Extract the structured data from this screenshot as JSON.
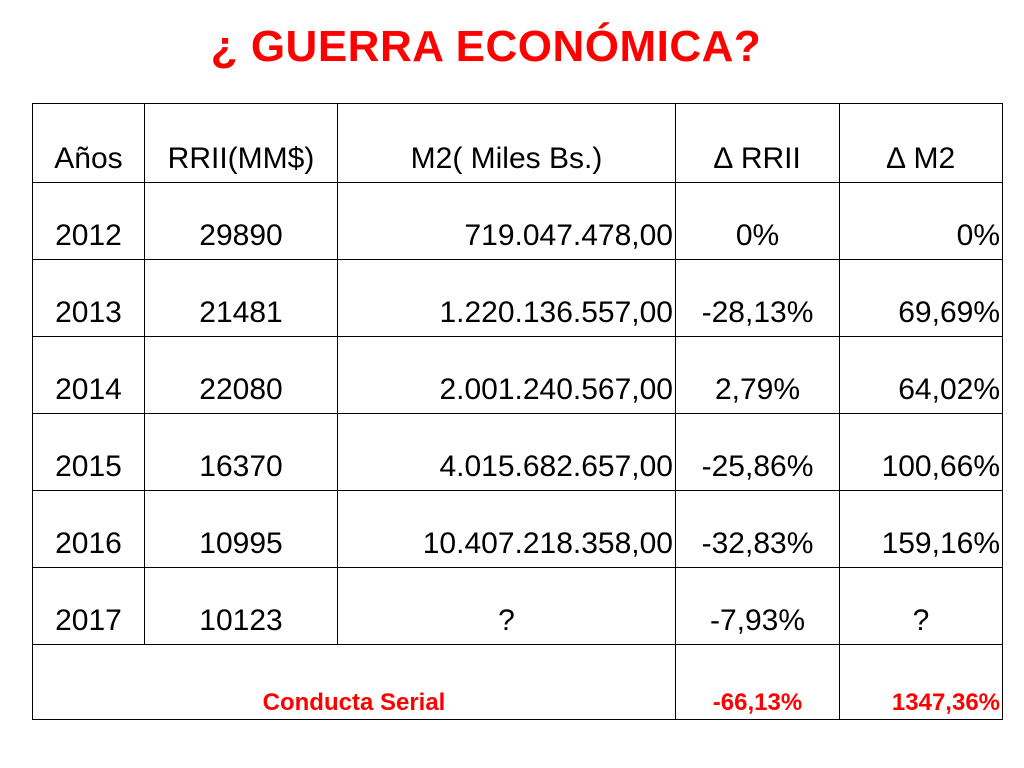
{
  "title": "¿ GUERRA ECONÓMICA?",
  "table": {
    "headers": [
      "Años",
      "RRII(MM$)",
      "M2( Miles Bs.)",
      "∆ RRII",
      "∆ M2"
    ],
    "rows": [
      [
        "2012",
        "29890",
        "719.047.478,00",
        "0%",
        "0%"
      ],
      [
        "2013",
        "21481",
        "1.220.136.557,00",
        "-28,13%",
        "69,69%"
      ],
      [
        "2014",
        "22080",
        "2.001.240.567,00",
        "2,79%",
        "64,02%"
      ],
      [
        "2015",
        "16370",
        "4.015.682.657,00",
        "-25,86%",
        "100,66%"
      ],
      [
        "2016",
        "10995",
        "10.407.218.358,00",
        "-32,83%",
        "159,16%"
      ],
      [
        "2017",
        "10123",
        "?",
        "-7,93%",
        "?"
      ]
    ],
    "summary": {
      "label": "Conducta Serial",
      "delta_rrii": "-66,13%",
      "delta_m2": "1347,36%"
    }
  },
  "colors": {
    "accent": "#ff0000",
    "text": "#000000",
    "background": "#ffffff"
  }
}
